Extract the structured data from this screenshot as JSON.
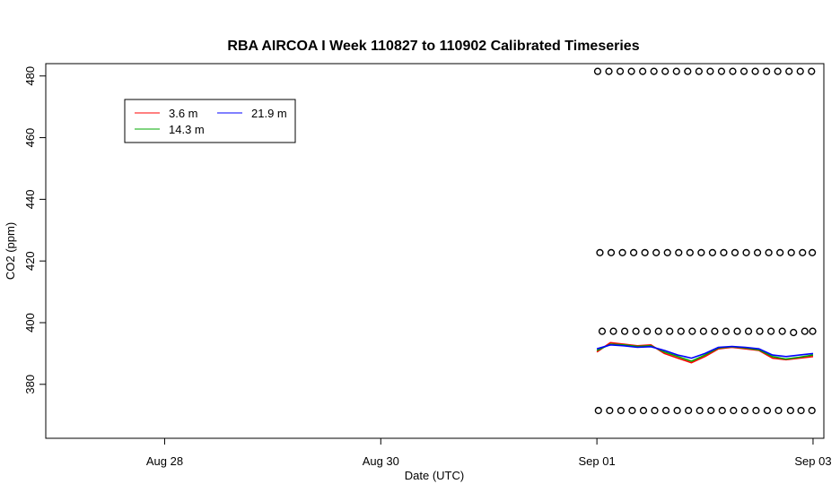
{
  "chart_data": {
    "type": "line",
    "title": "RBA AIRCOA I  Week 110827 to 110902  Calibrated Timeseries",
    "xlabel": "Date (UTC)",
    "ylabel": "CO2 (ppm)",
    "xlim": [
      "2011-08-26T21:36:00Z",
      "2011-09-03T02:24:00Z"
    ],
    "ylim": [
      362.5,
      484
    ],
    "x_ticks": [
      {
        "value": "2011-08-28",
        "label": "Aug 28"
      },
      {
        "value": "2011-08-30",
        "label": "Aug 30"
      },
      {
        "value": "2011-09-01",
        "label": "Sep 01"
      },
      {
        "value": "2011-09-03",
        "label": "Sep 03"
      }
    ],
    "y_ticks": [
      380,
      400,
      420,
      440,
      460,
      480
    ],
    "grid": false,
    "legend": {
      "position": "top-left",
      "entries": [
        {
          "name": "3.6 m",
          "color": "#ff0000"
        },
        {
          "name": "14.3 m",
          "color": "#00aa00"
        },
        {
          "name": "21.9 m",
          "color": "#0000ff"
        }
      ]
    },
    "series": [
      {
        "name": "3.6 m",
        "color": "#ff0000",
        "x": [
          "2011-09-01T00:00",
          "2011-09-01T03:00",
          "2011-09-01T06:00",
          "2011-09-01T09:00",
          "2011-09-01T12:00",
          "2011-09-01T15:00",
          "2011-09-01T18:00",
          "2011-09-01T21:00",
          "2011-09-02T00:00",
          "2011-09-02T03:00",
          "2011-09-02T06:00",
          "2011-09-02T09:00",
          "2011-09-02T12:00",
          "2011-09-02T15:00",
          "2011-09-02T18:00",
          "2011-09-02T21:00",
          "2011-09-03T00:00"
        ],
        "y": [
          390.5,
          393.5,
          393.0,
          392.5,
          392.8,
          390.0,
          388.5,
          387.0,
          389.0,
          391.5,
          392.0,
          391.5,
          391.0,
          388.5,
          388.0,
          388.5,
          389.0
        ]
      },
      {
        "name": "14.3 m",
        "color": "#00aa00",
        "x": [
          "2011-09-01T00:00",
          "2011-09-01T03:00",
          "2011-09-01T06:00",
          "2011-09-01T09:00",
          "2011-09-01T12:00",
          "2011-09-01T15:00",
          "2011-09-01T18:00",
          "2011-09-01T21:00",
          "2011-09-02T00:00",
          "2011-09-02T03:00",
          "2011-09-02T06:00",
          "2011-09-02T09:00",
          "2011-09-02T12:00",
          "2011-09-02T15:00",
          "2011-09-02T18:00",
          "2011-09-02T21:00",
          "2011-09-03T00:00"
        ],
        "y": [
          391.0,
          393.0,
          392.8,
          392.3,
          392.5,
          390.5,
          389.0,
          387.5,
          389.5,
          391.8,
          392.2,
          391.8,
          391.2,
          389.0,
          388.2,
          388.8,
          389.5
        ]
      },
      {
        "name": "21.9 m",
        "color": "#0000ff",
        "x": [
          "2011-09-01T00:00",
          "2011-09-01T03:00",
          "2011-09-01T06:00",
          "2011-09-01T09:00",
          "2011-09-01T12:00",
          "2011-09-01T15:00",
          "2011-09-01T18:00",
          "2011-09-01T21:00",
          "2011-09-02T00:00",
          "2011-09-02T03:00",
          "2011-09-02T06:00",
          "2011-09-02T09:00",
          "2011-09-02T12:00",
          "2011-09-02T15:00",
          "2011-09-02T18:00",
          "2011-09-02T21:00",
          "2011-09-03T00:00"
        ],
        "y": [
          391.5,
          392.8,
          392.5,
          392.0,
          392.2,
          391.0,
          389.5,
          388.5,
          390.0,
          392.0,
          392.3,
          392.0,
          391.5,
          389.5,
          389.0,
          389.5,
          390.0
        ]
      },
      {
        "name": "",
        "type": "scatter",
        "marker": "open-circle",
        "color": "#000000",
        "x": [
          "2011-09-01T00:10",
          "2011-09-01T02:40",
          "2011-09-01T05:10",
          "2011-09-01T07:40",
          "2011-09-01T10:10",
          "2011-09-01T12:40",
          "2011-09-01T15:10",
          "2011-09-01T17:40",
          "2011-09-01T20:10",
          "2011-09-01T22:40",
          "2011-09-02T01:10",
          "2011-09-02T03:40",
          "2011-09-02T06:10",
          "2011-09-02T08:40",
          "2011-09-02T11:10",
          "2011-09-02T13:40",
          "2011-09-02T16:10",
          "2011-09-02T18:40",
          "2011-09-02T21:10",
          "2011-09-02T23:40"
        ],
        "y": [
          481.5,
          481.5,
          481.5,
          481.5,
          481.5,
          481.5,
          481.5,
          481.5,
          481.5,
          481.5,
          481.5,
          481.5,
          481.5,
          481.5,
          481.5,
          481.5,
          481.5,
          481.5,
          481.5,
          481.5
        ]
      },
      {
        "name": "",
        "type": "scatter",
        "marker": "open-circle",
        "color": "#000000",
        "x": [
          "2011-09-01T00:40",
          "2011-09-01T03:10",
          "2011-09-01T05:40",
          "2011-09-01T08:10",
          "2011-09-01T10:40",
          "2011-09-01T13:10",
          "2011-09-01T15:40",
          "2011-09-01T18:10",
          "2011-09-01T20:40",
          "2011-09-01T23:10",
          "2011-09-02T01:40",
          "2011-09-02T04:10",
          "2011-09-02T06:40",
          "2011-09-02T09:10",
          "2011-09-02T11:40",
          "2011-09-02T14:10",
          "2011-09-02T16:40",
          "2011-09-02T19:10",
          "2011-09-02T21:40",
          "2011-09-02T23:50"
        ],
        "y": [
          422.7,
          422.7,
          422.7,
          422.7,
          422.7,
          422.7,
          422.7,
          422.7,
          422.7,
          422.7,
          422.7,
          422.7,
          422.7,
          422.7,
          422.7,
          422.7,
          422.7,
          422.7,
          422.7,
          422.7
        ]
      },
      {
        "name": "",
        "type": "scatter",
        "marker": "open-circle",
        "color": "#000000",
        "x": [
          "2011-09-01T01:10",
          "2011-09-01T03:40",
          "2011-09-01T06:10",
          "2011-09-01T08:40",
          "2011-09-01T11:10",
          "2011-09-01T13:40",
          "2011-09-01T16:10",
          "2011-09-01T18:40",
          "2011-09-01T21:10",
          "2011-09-01T23:40",
          "2011-09-02T02:10",
          "2011-09-02T04:40",
          "2011-09-02T07:10",
          "2011-09-02T09:40",
          "2011-09-02T12:10",
          "2011-09-02T14:40",
          "2011-09-02T17:10",
          "2011-09-02T19:40",
          "2011-09-02T22:10",
          "2011-09-02T23:55"
        ],
        "y": [
          397.2,
          397.2,
          397.2,
          397.2,
          397.2,
          397.2,
          397.2,
          397.2,
          397.2,
          397.2,
          397.2,
          397.2,
          397.2,
          397.2,
          397.2,
          397.2,
          397.2,
          396.8,
          397.2,
          397.2
        ]
      },
      {
        "name": "",
        "type": "scatter",
        "marker": "open-circle",
        "color": "#000000",
        "x": [
          "2011-09-01T00:20",
          "2011-09-01T02:50",
          "2011-09-01T05:20",
          "2011-09-01T07:50",
          "2011-09-01T10:20",
          "2011-09-01T12:50",
          "2011-09-01T15:20",
          "2011-09-01T17:50",
          "2011-09-01T20:20",
          "2011-09-01T22:50",
          "2011-09-02T01:20",
          "2011-09-02T03:50",
          "2011-09-02T06:20",
          "2011-09-02T08:50",
          "2011-09-02T11:20",
          "2011-09-02T13:50",
          "2011-09-02T16:20",
          "2011-09-02T19:00",
          "2011-09-02T21:20",
          "2011-09-02T23:45"
        ],
        "y": [
          371.5,
          371.5,
          371.5,
          371.5,
          371.5,
          371.5,
          371.5,
          371.5,
          371.5,
          371.5,
          371.5,
          371.5,
          371.5,
          371.5,
          371.5,
          371.5,
          371.5,
          371.5,
          371.5,
          371.5
        ]
      }
    ]
  }
}
